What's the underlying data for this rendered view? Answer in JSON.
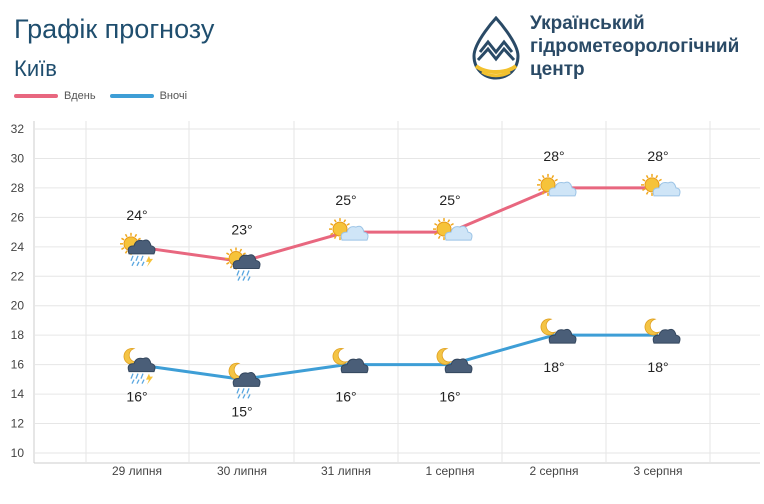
{
  "header": {
    "title": "Графік прогнозу",
    "city": "Київ",
    "org_name": "Український гідрометеорологічний центр"
  },
  "legend": {
    "day_label": "Вдень",
    "night_label": "Вночі"
  },
  "colors": {
    "day": "#e8677f",
    "night": "#3e9ed6",
    "title": "#1f4e6e",
    "logo_blue": "#2a4a66",
    "logo_yellow": "#f2c12e"
  },
  "chart_data": {
    "type": "line",
    "categories": [
      "29 липня",
      "30 липня",
      "31 липня",
      "1 серпня",
      "2 серпня",
      "3 серпня"
    ],
    "series": [
      {
        "name": "Вдень",
        "values": [
          24,
          23,
          25,
          25,
          28,
          28
        ],
        "labels": [
          "24°",
          "23°",
          "25°",
          "25°",
          "28°",
          "28°"
        ],
        "icons": [
          "sun-thunderstorm-rain-icon",
          "sun-rain-icon",
          "sun-cloud-icon",
          "sun-cloud-icon",
          "sun-cloud-icon",
          "sun-cloud-icon"
        ]
      },
      {
        "name": "Вночі",
        "values": [
          16,
          15,
          16,
          16,
          18,
          18
        ],
        "labels": [
          "16°",
          "15°",
          "16°",
          "16°",
          "18°",
          "18°"
        ],
        "icons": [
          "moon-thunderstorm-rain-icon",
          "moon-rain-icon",
          "moon-cloud-icon",
          "moon-cloud-icon",
          "moon-cloud-icon",
          "moon-cloud-icon"
        ]
      }
    ],
    "ylim": [
      10,
      32
    ],
    "yticks": [
      "10",
      "12",
      "14",
      "16",
      "18",
      "20",
      "22",
      "24",
      "26",
      "28",
      "30",
      "32"
    ],
    "grid": true,
    "legend_position": "top-left"
  }
}
